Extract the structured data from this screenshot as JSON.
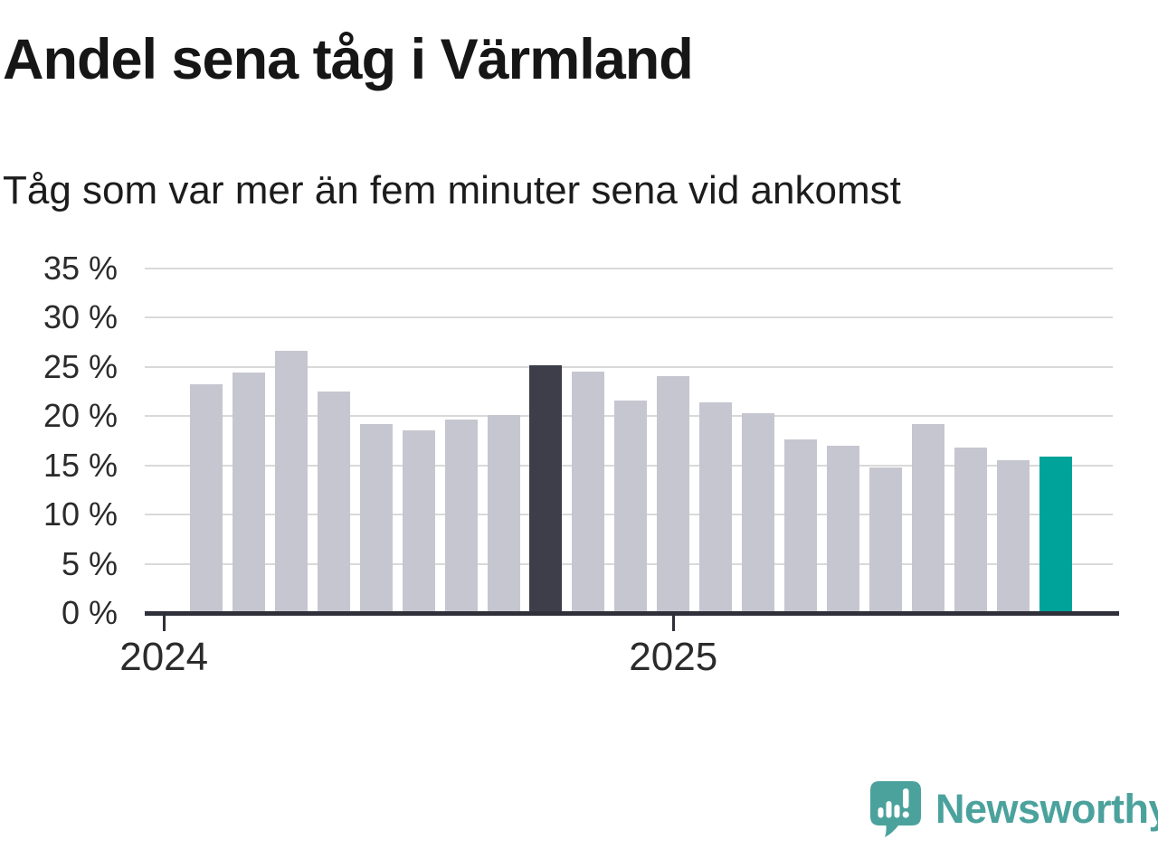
{
  "header": {
    "title": "Andel sena tåg i Värmland",
    "subtitle": "Tåg som var mer än fem minuter sena vid ankomst"
  },
  "chart_data": {
    "type": "bar",
    "title": "Andel sena tåg i Värmland",
    "subtitle": "Tåg som var mer än fem minuter sena vid ankomst",
    "unit": "%",
    "ylim": [
      0,
      35
    ],
    "grid": true,
    "values": [
      23.2,
      24.4,
      26.6,
      22.5,
      19.2,
      18.6,
      19.7,
      20.1,
      25.2,
      24.5,
      21.6,
      24.1,
      21.4,
      20.3,
      17.6,
      17.0,
      14.8,
      19.2,
      16.8,
      15.5,
      15.9
    ],
    "highlight_previous_year_index": 8,
    "highlight_latest_index": 20,
    "colors": {
      "default": "#c6c6d0",
      "highlight_previous_year": "#3e3e4b",
      "highlight_latest": "#00a39a",
      "gridline": "#d9d9d9",
      "axis": "#30303a"
    },
    "y_ticks": [
      {
        "value": 0,
        "label": "0 %"
      },
      {
        "value": 5,
        "label": "5 %"
      },
      {
        "value": 10,
        "label": "10 %"
      },
      {
        "value": 15,
        "label": "15 %"
      },
      {
        "value": 20,
        "label": "20 %"
      },
      {
        "value": 25,
        "label": "25 %"
      },
      {
        "value": 30,
        "label": "30 %"
      },
      {
        "value": 35,
        "label": "35 %"
      }
    ],
    "x_ticks": [
      {
        "label": "2024",
        "slot": 0
      },
      {
        "label": "2025",
        "slot": 12
      }
    ]
  },
  "footer": {
    "brand": "Newsworthy",
    "brand_color": "#4ba29d"
  }
}
